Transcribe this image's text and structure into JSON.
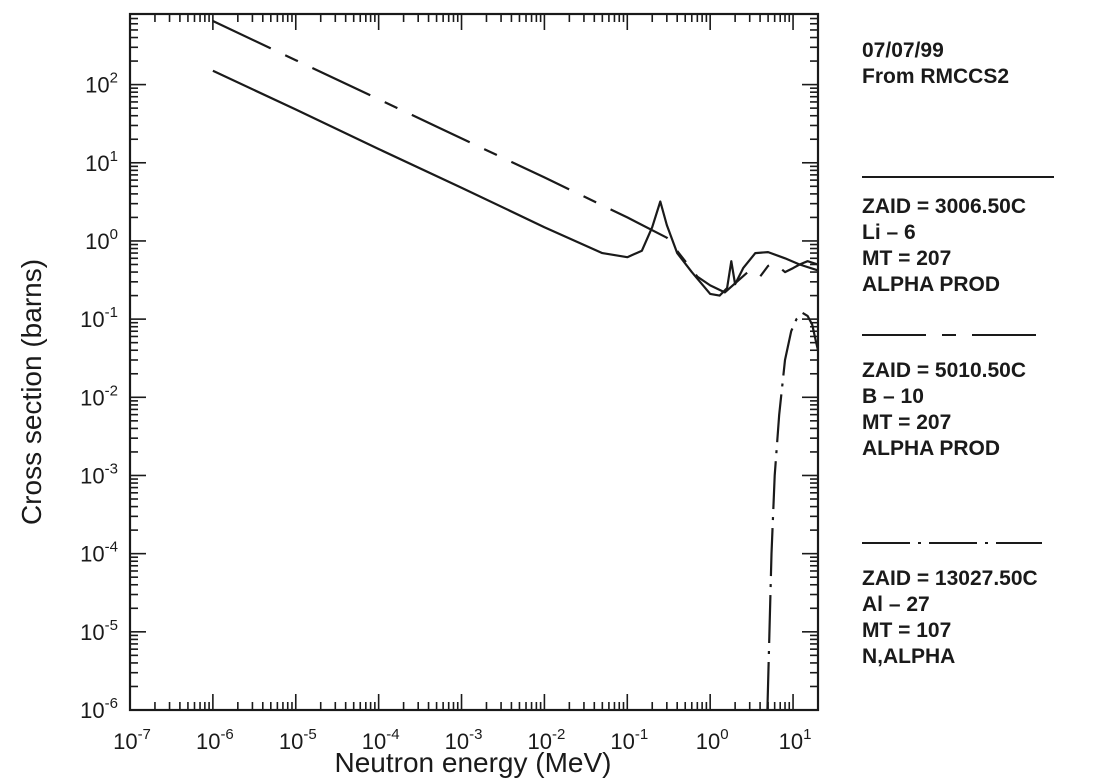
{
  "chart_data": {
    "type": "line",
    "xlabel": "Neutron energy (MeV)",
    "ylabel": "Cross section (barns)",
    "x_scale": "log",
    "y_scale": "log",
    "xlim": [
      1e-07,
      20
    ],
    "ylim": [
      1e-06,
      800
    ],
    "x_ticks": [
      {
        "value": 1e-07,
        "mant": "10",
        "exp": "-7"
      },
      {
        "value": 1e-06,
        "mant": "10",
        "exp": "-6"
      },
      {
        "value": 1e-05,
        "mant": "10",
        "exp": "-5"
      },
      {
        "value": 0.0001,
        "mant": "10",
        "exp": "-4"
      },
      {
        "value": 0.001,
        "mant": "10",
        "exp": "-3"
      },
      {
        "value": 0.01,
        "mant": "10",
        "exp": "-2"
      },
      {
        "value": 0.1,
        "mant": "10",
        "exp": "-1"
      },
      {
        "value": 1,
        "mant": "10",
        "exp": "0"
      },
      {
        "value": 10,
        "mant": "10",
        "exp": "1"
      }
    ],
    "y_ticks": [
      {
        "value": 1e-06,
        "mant": "10",
        "exp": "-6"
      },
      {
        "value": 1e-05,
        "mant": "10",
        "exp": "-5"
      },
      {
        "value": 0.0001,
        "mant": "10",
        "exp": "-4"
      },
      {
        "value": 0.001,
        "mant": "10",
        "exp": "-3"
      },
      {
        "value": 0.01,
        "mant": "10",
        "exp": "-2"
      },
      {
        "value": 0.1,
        "mant": "10",
        "exp": "-1"
      },
      {
        "value": 1,
        "mant": "10",
        "exp": "0"
      },
      {
        "value": 10,
        "mant": "10",
        "exp": "1"
      },
      {
        "value": 100,
        "mant": "10",
        "exp": "2"
      }
    ],
    "grid": false,
    "legend_position": "right",
    "series": [
      {
        "dash": "solid",
        "points": [
          [
            1e-06,
            150
          ],
          [
            1e-05,
            48
          ],
          [
            0.0001,
            15
          ],
          [
            0.001,
            4.8
          ],
          [
            0.01,
            1.5
          ],
          [
            0.05,
            0.7
          ],
          [
            0.1,
            0.62
          ],
          [
            0.15,
            0.75
          ],
          [
            0.2,
            1.5
          ],
          [
            0.25,
            3.2
          ],
          [
            0.3,
            1.6
          ],
          [
            0.4,
            0.7
          ],
          [
            0.6,
            0.4
          ],
          [
            1.0,
            0.21
          ],
          [
            1.3,
            0.2
          ],
          [
            1.6,
            0.25
          ],
          [
            1.8,
            0.55
          ],
          [
            2.0,
            0.28
          ],
          [
            2.5,
            0.45
          ],
          [
            3.5,
            0.7
          ],
          [
            5.0,
            0.72
          ],
          [
            8.0,
            0.6
          ],
          [
            12,
            0.5
          ],
          [
            20,
            0.42
          ]
        ]
      },
      {
        "dash": "long-dash-dot",
        "points": [
          [
            1e-06,
            650
          ],
          [
            1e-05,
            205
          ],
          [
            0.0001,
            65
          ],
          [
            0.001,
            20.5
          ],
          [
            0.01,
            6.5
          ],
          [
            0.1,
            2.0
          ],
          [
            0.3,
            1.1
          ],
          [
            0.5,
            0.55
          ],
          [
            0.7,
            0.35
          ],
          [
            1.0,
            0.27
          ],
          [
            1.5,
            0.22
          ],
          [
            3.0,
            0.42
          ],
          [
            4.0,
            0.35
          ],
          [
            5.0,
            0.48
          ],
          [
            6.0,
            0.52
          ],
          [
            8.0,
            0.4
          ],
          [
            10,
            0.45
          ],
          [
            12,
            0.5
          ],
          [
            15,
            0.55
          ],
          [
            20,
            0.5
          ]
        ]
      },
      {
        "dash": "dash-dot",
        "points": [
          [
            4.9,
            1e-06
          ],
          [
            5.5,
            0.0001
          ],
          [
            6.0,
            0.001
          ],
          [
            6.8,
            0.006
          ],
          [
            8.0,
            0.03
          ],
          [
            9.5,
            0.07
          ],
          [
            11,
            0.1
          ],
          [
            13,
            0.12
          ],
          [
            15,
            0.11
          ],
          [
            17,
            0.085
          ],
          [
            19,
            0.05
          ],
          [
            20,
            0.04
          ]
        ]
      }
    ]
  },
  "legend": {
    "date": "07/07/99",
    "source": "From RMCCS2",
    "entries": [
      {
        "zaid": "ZAID = 3006.50C",
        "nuclide": "Li – 6",
        "mt": "MT = 207",
        "reaction": "ALPHA PROD",
        "line_style": "solid"
      },
      {
        "zaid": "ZAID = 5010.50C",
        "nuclide": "B – 10",
        "mt": "MT = 207",
        "reaction": "ALPHA PROD",
        "line_style": "long-dash-dot"
      },
      {
        "zaid": "ZAID = 13027.50C",
        "nuclide": "Al – 27",
        "mt": "MT = 107",
        "reaction": "N,ALPHA",
        "line_style": "dash-dot"
      }
    ]
  },
  "colors": {
    "ink": "#1a1a1a",
    "background": "#ffffff"
  }
}
